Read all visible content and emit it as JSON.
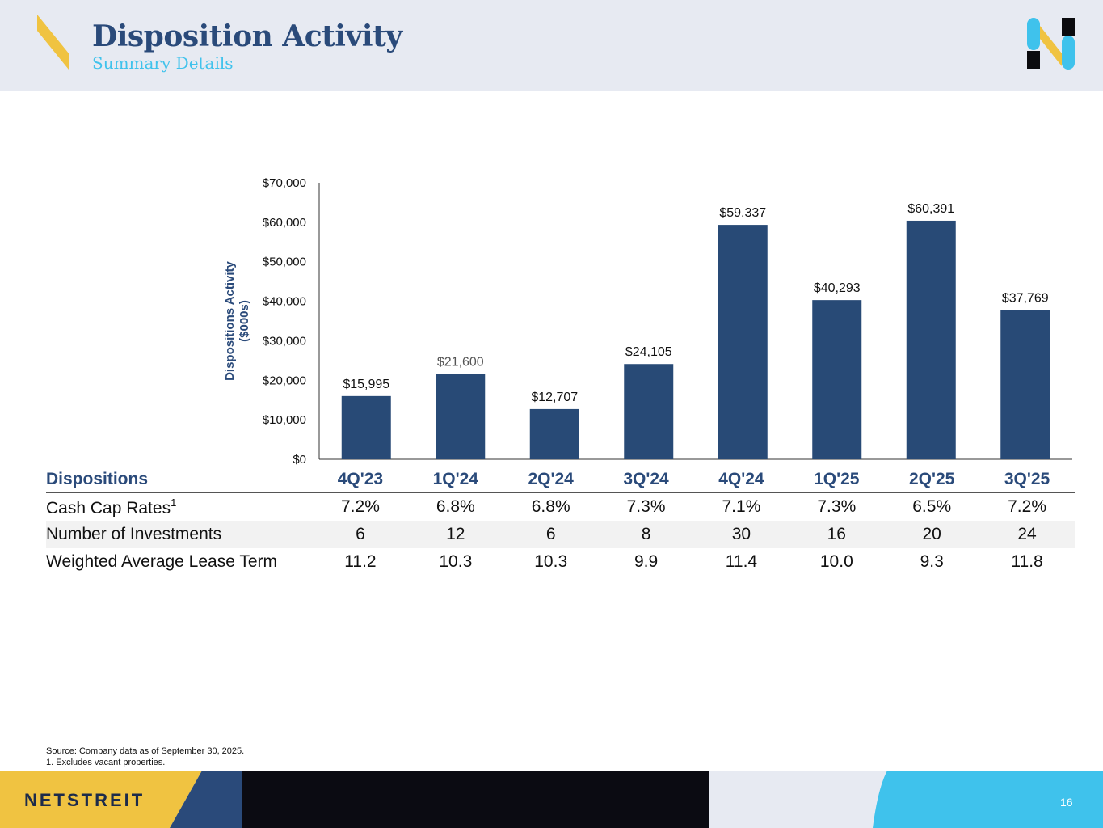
{
  "header": {
    "title": "Disposition Activity",
    "subtitle": "Summary Details"
  },
  "colors": {
    "navy": "#2a4a7a",
    "bar": "#284a76",
    "accent_blue": "#3fc2ec",
    "accent_yellow": "#f0c341",
    "header_bg": "#e7eaf2"
  },
  "chart_data": {
    "type": "bar",
    "title": "",
    "xlabel": "",
    "ylabel": "Dispositions Activity ($000s)",
    "ylim": [
      0,
      70000
    ],
    "yticks": [
      "$0",
      "$10,000",
      "$20,000",
      "$30,000",
      "$40,000",
      "$50,000",
      "$60,000",
      "$70,000"
    ],
    "categories": [
      "4Q'23",
      "1Q'24",
      "2Q'24",
      "3Q'24",
      "4Q'24",
      "1Q'25",
      "2Q'25",
      "3Q'25"
    ],
    "values": [
      15995,
      21600,
      12707,
      24105,
      59337,
      40293,
      60391,
      37769
    ],
    "data_labels": [
      "$15,995",
      "$21,600",
      "$12,707",
      "$24,105",
      "$59,337",
      "$40,293",
      "$60,391",
      "$37,769"
    ]
  },
  "table": {
    "header_label": "Dispositions",
    "columns": [
      "4Q'23",
      "1Q'24",
      "2Q'24",
      "3Q'24",
      "4Q'24",
      "1Q'25",
      "2Q'25",
      "3Q'25"
    ],
    "rows": [
      {
        "label": "Cash Cap Rates",
        "sup": "1",
        "values": [
          "7.2%",
          "6.8%",
          "6.8%",
          "7.3%",
          "7.1%",
          "7.3%",
          "6.5%",
          "7.2%"
        ]
      },
      {
        "label": "Number of Investments",
        "values": [
          "6",
          "12",
          "6",
          "8",
          "30",
          "16",
          "20",
          "24"
        ]
      },
      {
        "label": "Weighted Average Lease Term",
        "values": [
          "11.2",
          "10.3",
          "10.3",
          "9.9",
          "11.4",
          "10.0",
          "9.3",
          "11.8"
        ]
      }
    ]
  },
  "footnotes": {
    "source": "Source: Company data as of September 30, 2025.",
    "note1": "1.  Excludes vacant properties."
  },
  "footer": {
    "brand": "NETSTREIT",
    "page_number": "16"
  }
}
